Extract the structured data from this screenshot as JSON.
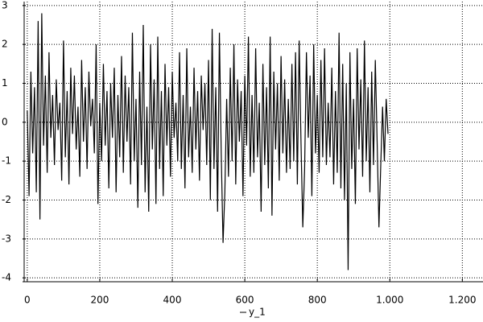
{
  "chart_data": {
    "type": "line",
    "x": [
      0,
      5,
      10,
      15,
      20,
      25,
      30,
      35,
      40,
      45,
      50,
      55,
      60,
      65,
      70,
      75,
      80,
      85,
      90,
      95,
      100,
      105,
      110,
      115,
      120,
      125,
      130,
      135,
      140,
      145,
      150,
      155,
      160,
      165,
      170,
      175,
      180,
      185,
      190,
      195,
      200,
      205,
      210,
      215,
      220,
      225,
      230,
      235,
      240,
      245,
      250,
      255,
      260,
      265,
      270,
      275,
      280,
      285,
      290,
      295,
      300,
      305,
      310,
      315,
      320,
      325,
      330,
      335,
      340,
      345,
      350,
      355,
      360,
      365,
      370,
      375,
      380,
      385,
      390,
      395,
      400,
      405,
      410,
      415,
      420,
      425,
      430,
      435,
      440,
      445,
      450,
      455,
      460,
      465,
      470,
      475,
      480,
      485,
      490,
      495,
      500,
      505,
      510,
      515,
      520,
      525,
      530,
      535,
      540,
      545,
      550,
      555,
      560,
      565,
      570,
      575,
      580,
      585,
      590,
      595,
      600,
      605,
      610,
      615,
      620,
      625,
      630,
      635,
      640,
      645,
      650,
      655,
      660,
      665,
      670,
      675,
      680,
      685,
      690,
      695,
      700,
      705,
      710,
      715,
      720,
      725,
      730,
      735,
      740,
      745,
      750,
      755,
      760,
      765,
      770,
      775,
      780,
      785,
      790,
      795,
      800,
      805,
      810,
      815,
      820,
      825,
      830,
      835,
      840,
      845,
      850,
      855,
      860,
      865,
      870,
      875,
      880,
      885,
      890,
      895,
      900,
      905,
      910,
      915,
      920,
      925,
      930,
      935,
      940,
      945,
      950,
      955,
      960,
      965,
      970,
      975,
      980,
      985,
      990,
      995
    ],
    "series": [
      {
        "name": "y_1",
        "color": "#000000",
        "values": [
          0.3,
          -1.9,
          1.3,
          -0.8,
          0.9,
          -1.8,
          2.6,
          -2.5,
          2.8,
          -0.6,
          1.2,
          -1.3,
          1.8,
          -0.4,
          0.7,
          -1.1,
          1.1,
          -0.2,
          0.5,
          -1.5,
          2.1,
          -0.9,
          0.8,
          -1.6,
          1.4,
          -0.3,
          1.2,
          -0.7,
          0.4,
          -1.4,
          1.6,
          -0.5,
          0.9,
          -1.2,
          1.3,
          -0.1,
          0.6,
          -0.8,
          2.0,
          -2.1,
          0.5,
          -1.0,
          1.5,
          -0.6,
          0.8,
          -1.7,
          1.0,
          -0.4,
          1.4,
          -1.8,
          0.7,
          -0.9,
          1.7,
          -1.3,
          1.2,
          -0.5,
          0.9,
          -1.6,
          2.3,
          -1.0,
          0.6,
          -2.2,
          1.3,
          -1.1,
          2.5,
          -1.8,
          0.4,
          -2.3,
          2.0,
          -0.7,
          1.1,
          -2.1,
          2.2,
          -1.2,
          0.8,
          -1.9,
          1.5,
          -0.6,
          0.9,
          -1.4,
          1.3,
          -0.4,
          0.5,
          -1.0,
          1.8,
          -1.2,
          0.7,
          -1.7,
          1.9,
          -0.9,
          0.4,
          -1.3,
          1.4,
          -0.7,
          0.8,
          -1.5,
          1.2,
          -0.2,
          1.0,
          -1.1,
          1.6,
          -2.0,
          2.4,
          -1.2,
          0.9,
          -2.3,
          2.3,
          -0.8,
          -3.1,
          -1.8,
          0.6,
          -1.4,
          1.4,
          -1.0,
          2.0,
          -1.6,
          1.1,
          -0.5,
          0.8,
          -1.9,
          1.2,
          -0.6,
          2.2,
          -1.4,
          0.7,
          -1.3,
          1.9,
          -0.9,
          0.5,
          -2.3,
          1.5,
          -1.1,
          0.9,
          -1.7,
          2.2,
          -2.4,
          1.3,
          -0.7,
          1.0,
          -1.5,
          1.7,
          -0.8,
          1.1,
          -1.3,
          0.6,
          -1.2,
          1.5,
          -1.0,
          1.8,
          -1.6,
          2.1,
          -0.5,
          -2.7,
          -1.2,
          1.8,
          -0.4,
          1.2,
          -1.9,
          2.0,
          -0.8,
          0.7,
          -1.3,
          1.6,
          -0.9,
          1.9,
          -1.1,
          0.5,
          -0.9,
          1.4,
          -1.6,
          0.8,
          -1.3,
          2.3,
          -1.7,
          1.5,
          -2.0,
          1.0,
          -3.8,
          1.8,
          -1.2,
          0.6,
          -2.1,
          1.9,
          -0.7,
          1.1,
          -1.4,
          2.1,
          -1.0,
          0.9,
          -1.8,
          1.3,
          -1.1,
          1.6,
          -0.5,
          -2.7,
          -1.1,
          0.4,
          -1.0,
          0.6,
          -0.3
        ]
      }
    ],
    "xlim": [
      -13,
      1257
    ],
    "ylim": [
      -4.1,
      3.1
    ],
    "xticks": [
      0,
      200,
      400,
      600,
      800,
      {
        "value": 1000,
        "label": "1.000"
      },
      {
        "value": 1200,
        "label": "1.200"
      }
    ],
    "yticks": [
      -4,
      -3,
      -2,
      -1,
      0,
      1,
      2,
      3
    ],
    "grid": true,
    "legend": "bottom"
  }
}
